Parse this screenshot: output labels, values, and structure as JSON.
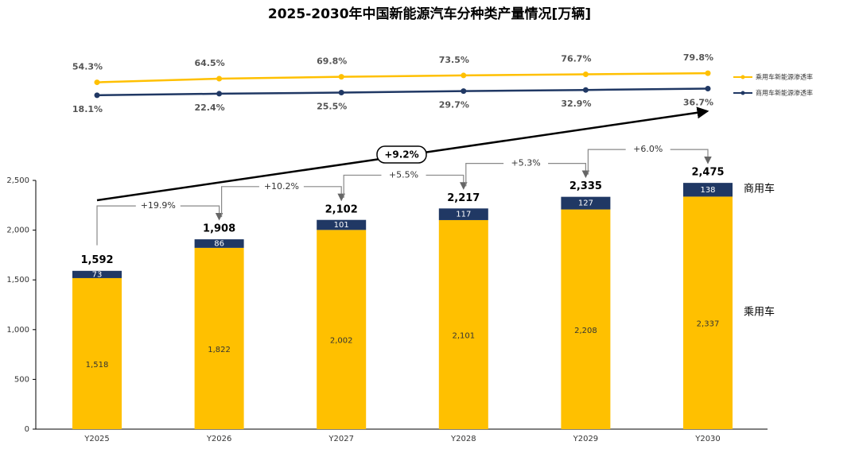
{
  "chart_data": {
    "type": "stacked-bar-line",
    "title": "2025-2030年中国新能源汽车分种类产量情况[万辆]",
    "categories": [
      "Y2025",
      "Y2026",
      "Y2027",
      "Y2028",
      "Y2029",
      "Y2030"
    ],
    "series": [
      {
        "name": "乘用车",
        "color": "#FFC000",
        "values": [
          1518,
          1822,
          2002,
          2101,
          2208,
          2337
        ],
        "value_labels": [
          "1,518",
          "1,822",
          "2,002",
          "2,101",
          "2,208",
          "2,337"
        ]
      },
      {
        "name": "商用车",
        "color": "#203864",
        "values": [
          73,
          86,
          101,
          117,
          127,
          138
        ]
      }
    ],
    "totals": [
      1592,
      1908,
      2102,
      2217,
      2335,
      2475
    ],
    "total_labels": [
      "1,592",
      "1,908",
      "2,102",
      "2,217",
      "2,335",
      "2,475"
    ],
    "growth_labels": [
      "+19.9%",
      "+10.2%",
      "+5.5%",
      "+5.3%",
      "+6.0%"
    ],
    "cagr_label": "+9.2%",
    "ylim": [
      0,
      2500
    ],
    "yticks": [
      0,
      500,
      {
        "value": 1000,
        "label": "1,000"
      },
      {
        "value": 1500,
        "label": "1,500"
      },
      {
        "value": 2000,
        "label": "2,000"
      },
      {
        "value": 2500,
        "label": "2,500"
      }
    ],
    "lines": [
      {
        "name": "乘用车新能源渗透率",
        "color": "#FFC000",
        "values": [
          54.3,
          64.5,
          69.8,
          73.5,
          76.7,
          79.8
        ],
        "value_labels": [
          "54.3%",
          "64.5%",
          "69.8%",
          "73.5%",
          "76.7%",
          "79.8%"
        ]
      },
      {
        "name": "商用车新能源渗透率",
        "color": "#203864",
        "values": [
          18.1,
          22.4,
          25.5,
          29.7,
          32.9,
          36.7
        ],
        "value_labels": [
          "18.1%",
          "22.4%",
          "25.5%",
          "29.7%",
          "32.9%",
          "36.7%"
        ]
      }
    ]
  }
}
